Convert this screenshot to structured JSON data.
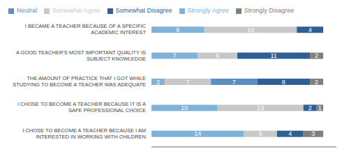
{
  "chart_data": {
    "type": "bar",
    "orientation": "horizontal",
    "stacked": true,
    "data_labels": true,
    "legend": "top",
    "tick_labels": "y",
    "categories": [
      "I BECAME A TEACHER BECAUSE OF A SPECIFIC\nACADEMIC INTEREST",
      "A GOOD TEACHER'S MOST IMPORTANT QUALITY IS\nSUBJECT KNOWLEDGE",
      "THE AMOUNT OF PRACTICE THAT I GOT WHILE\nSTUDYING TO BECOME A TEACHER WAS ADEQUATE",
      "I CHOSE TO BECOME A TEACHER BECAUSE IT IS A\nSAFE PROFESSIONAL CHOICE",
      "I CHOSE TO BECOME A TEACHER BECAUSE I AM\nINTERESTED IN WORKING WITH CHILDREN"
    ],
    "series": [
      {
        "name": "Strongly Agree",
        "color": "#7fb2d9",
        "values": [
          8,
          7,
          2,
          10,
          14
        ]
      },
      {
        "name": "Somewhat Agree",
        "color": "#c8c8c8",
        "values": [
          14,
          6,
          7,
          13,
          5
        ]
      },
      {
        "name": "Neutral",
        "color": "#5b8fbf",
        "values": [
          0,
          0,
          7,
          0,
          0
        ]
      },
      {
        "name": "Somewhat Disagree",
        "color": "#2e5f96",
        "values": [
          4,
          11,
          8,
          2,
          4
        ]
      },
      {
        "name": "Strongly Disagree",
        "color": "#808080",
        "values": [
          0,
          2,
          2,
          1,
          3
        ]
      }
    ],
    "xlim": [
      0,
      28
    ]
  }
}
